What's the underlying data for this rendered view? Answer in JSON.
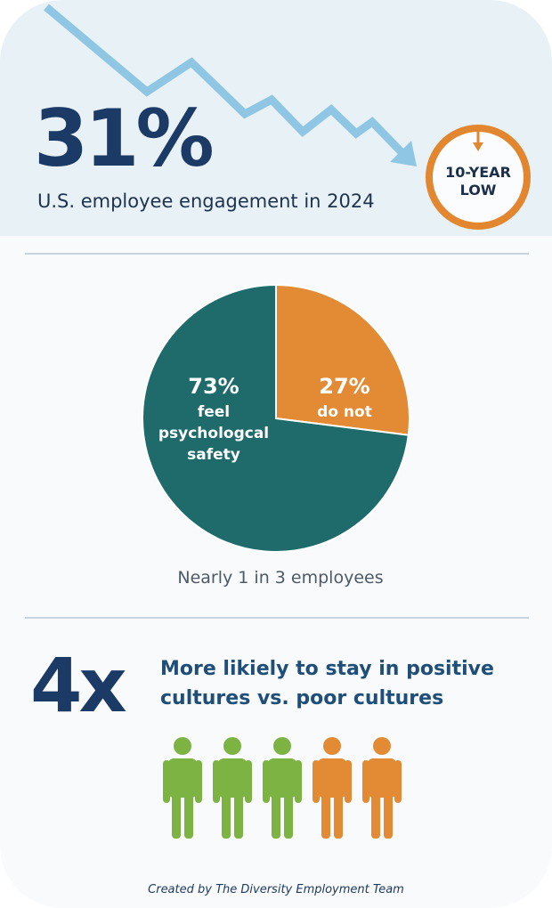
{
  "header": {
    "stat": "31%",
    "subtitle": "U.S. employee engagement in 2024",
    "badge_line1": "10-YEAR",
    "badge_line2": "LOW",
    "icon": "down-trend-arrow-icon"
  },
  "chart_data": {
    "type": "pie",
    "slices": [
      {
        "value": 73,
        "label_pct": "73%",
        "label_lines": [
          "feel",
          "psychologcal",
          "safety"
        ],
        "color": "#1f6b6b"
      },
      {
        "value": 27,
        "label_pct": "27%",
        "label_lines": [
          "do not"
        ],
        "color": "#e38a35"
      }
    ],
    "caption": "Nearly 1 in 3 employees"
  },
  "retention": {
    "multiplier": "4x",
    "line1": "More likiely to stay in positive",
    "line2": "cultures vs. poor cultures",
    "people": [
      {
        "color": "#7db343"
      },
      {
        "color": "#7db343"
      },
      {
        "color": "#7db343"
      },
      {
        "color": "#e38a35"
      },
      {
        "color": "#e38a35"
      }
    ]
  },
  "footer": "Created by The Diversity Employment Team",
  "colors": {
    "navy": "#1b3a66",
    "orange": "#e38a35",
    "teal": "#1f6b6b",
    "green": "#7db343",
    "trend": "#8fc6e3"
  }
}
